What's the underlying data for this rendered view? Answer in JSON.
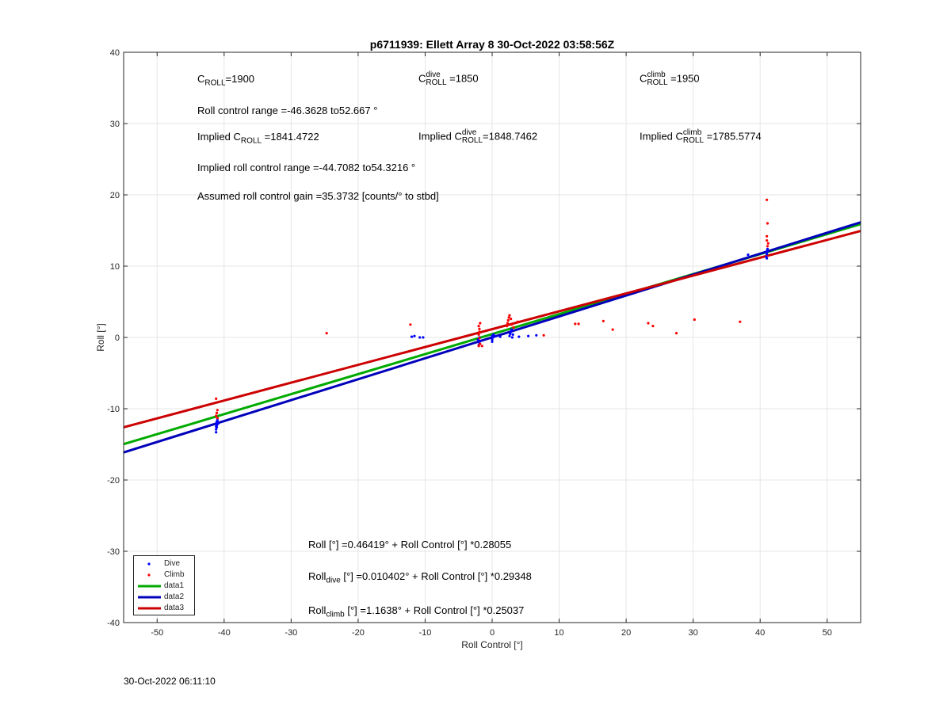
{
  "chart_data": {
    "type": "scatter",
    "title": "p6711939: Ellett Array 8 30-Oct-2022 03:58:56Z",
    "xlabel": "Roll Control [°]",
    "ylabel": "Roll [°]",
    "xlim": [
      -55,
      55
    ],
    "ylim": [
      -40,
      40
    ],
    "xticks": [
      -50,
      -40,
      -30,
      -20,
      -10,
      0,
      10,
      20,
      30,
      40,
      50
    ],
    "yticks": [
      -40,
      -30,
      -20,
      -10,
      0,
      10,
      20,
      30,
      40
    ],
    "grid": true,
    "legend_position": "bottom-left",
    "series": [
      {
        "name": "Dive",
        "kind": "points",
        "color": "#0000ff",
        "points": [
          [
            -41.2,
            -13.3
          ],
          [
            -41.2,
            -12.9
          ],
          [
            -41.1,
            -12.6
          ],
          [
            -41.1,
            -12.3
          ],
          [
            -41.1,
            -12
          ],
          [
            -41.0,
            -11.7
          ],
          [
            -41.0,
            -11.4
          ],
          [
            -41.1,
            -11.8
          ],
          [
            -40.9,
            -12.1
          ],
          [
            -41.2,
            -12.5
          ],
          [
            -12,
            0.1
          ],
          [
            -11.6,
            0.2
          ],
          [
            -10.8,
            0
          ],
          [
            -10.3,
            0
          ],
          [
            -2.0,
            -1.1
          ],
          [
            -1.9,
            -0.8
          ],
          [
            -1.8,
            -0.5
          ],
          [
            -2.1,
            -0.3
          ],
          [
            -1.9,
            0
          ],
          [
            0,
            -0.6
          ],
          [
            0,
            -0.3
          ],
          [
            0.1,
            0
          ],
          [
            0,
            0.2
          ],
          [
            0.2,
            0.4
          ],
          [
            0.5,
            0.2
          ],
          [
            1.2,
            0.1
          ],
          [
            2.6,
            0.2
          ],
          [
            2.7,
            0.5
          ],
          [
            2.8,
            0.8
          ],
          [
            2.9,
            1.1
          ],
          [
            3.1,
            0.4
          ],
          [
            3.0,
            0
          ],
          [
            4,
            0.1
          ],
          [
            5.4,
            0.2
          ],
          [
            6.6,
            0.3
          ],
          [
            38.2,
            11.6
          ],
          [
            40.9,
            11.3
          ],
          [
            41.0,
            11.7
          ],
          [
            41.0,
            12.1
          ],
          [
            41.1,
            12.4
          ],
          [
            41.0,
            11.1
          ]
        ]
      },
      {
        "name": "Climb",
        "kind": "points",
        "color": "#ff0000",
        "points": [
          [
            -41.2,
            -8.6
          ],
          [
            -41.0,
            -10.2
          ],
          [
            -41.1,
            -10.6
          ],
          [
            -41.2,
            -11
          ],
          [
            -41.0,
            -11.3
          ],
          [
            -24.7,
            0.6
          ],
          [
            -12.2,
            1.8
          ],
          [
            -2.0,
            -1.2
          ],
          [
            -1.8,
            -0.9
          ],
          [
            -1.9,
            -0.1
          ],
          [
            -2.0,
            0.4
          ],
          [
            -1.9,
            0.8
          ],
          [
            -1.9,
            1.2
          ],
          [
            -2.0,
            1.6
          ],
          [
            -1.8,
            2.0
          ],
          [
            -1.5,
            -1.2
          ],
          [
            2.2,
            1.6
          ],
          [
            2.3,
            2.0
          ],
          [
            2.4,
            2.4
          ],
          [
            2.5,
            2.8
          ],
          [
            2.6,
            3.1
          ],
          [
            2.8,
            2.6
          ],
          [
            2.9,
            1.8
          ],
          [
            3.2,
            1.4
          ],
          [
            3.8,
            2.2
          ],
          [
            7.7,
            0.3
          ],
          [
            12.4,
            1.9
          ],
          [
            12.9,
            1.9
          ],
          [
            16.6,
            2.3
          ],
          [
            18,
            1.1
          ],
          [
            23.3,
            2
          ],
          [
            24,
            1.6
          ],
          [
            27.5,
            0.6
          ],
          [
            30.2,
            2.5
          ],
          [
            37,
            2.2
          ],
          [
            41.0,
            19.3
          ],
          [
            41.1,
            16
          ],
          [
            41.0,
            13.6
          ],
          [
            41.2,
            13.2
          ],
          [
            41.1,
            12.8
          ],
          [
            41.0,
            14.2
          ]
        ]
      },
      {
        "name": "data1",
        "kind": "line",
        "color": "#00aa00",
        "intercept": 0.46419,
        "slope": 0.28055
      },
      {
        "name": "data2",
        "kind": "line",
        "color": "#0000bb",
        "intercept": 0.010402,
        "slope": 0.29348
      },
      {
        "name": "data3",
        "kind": "line",
        "color": "#cc0000",
        "intercept": 1.1638,
        "slope": 0.25037
      }
    ]
  },
  "annotations": {
    "c_roll": {
      "prefix": "C",
      "sub": "ROLL",
      "value": "=1900"
    },
    "c_roll_dive": {
      "prefix": "C",
      "sup": "dive",
      "sub": "ROLL",
      "value": " =1850"
    },
    "c_roll_climb": {
      "prefix": "C",
      "sup": "climb",
      "sub": "ROLL",
      "value": " =1950"
    },
    "roll_control_range": "Roll control range =-46.3628 to52.667 °",
    "implied_c_roll": {
      "prefix": "Implied C",
      "sub": "ROLL",
      "value": " =1841.4722"
    },
    "implied_c_roll_dive": {
      "prefix": "Implied C",
      "sup": "dive",
      "sub": "ROLL",
      "value": "=1848.7462"
    },
    "implied_c_roll_climb": {
      "prefix": "Implied C",
      "sup": "climb",
      "sub": "ROLL",
      "value": " =1785.5774"
    },
    "implied_range": "Implied roll control range =-44.7082 to54.3216 °",
    "assumed_gain": "Assumed roll control gain =35.3732 [counts/° to stbd]",
    "fit_all": "Roll [°] =0.46419° + Roll Control [°] *0.28055",
    "fit_dive": {
      "prefix": "Roll",
      "sub": "dive",
      "rest": " [°] =0.010402° + Roll Control [°] *0.29348"
    },
    "fit_climb": {
      "prefix": "Roll",
      "sub": "climb",
      "rest": " [°] =1.1638° + Roll Control [°] *0.25037"
    }
  },
  "legend": {
    "items": [
      {
        "label": "Dive",
        "kind": "point",
        "color": "#0000ff"
      },
      {
        "label": "Climb",
        "kind": "point",
        "color": "#ff0000"
      },
      {
        "label": "data1",
        "kind": "line",
        "color": "#00aa00"
      },
      {
        "label": "data2",
        "kind": "line",
        "color": "#0000bb"
      },
      {
        "label": "data3",
        "kind": "line",
        "color": "#cc0000"
      }
    ]
  },
  "footer": {
    "timestamp": "30-Oct-2022 06:11:10"
  }
}
